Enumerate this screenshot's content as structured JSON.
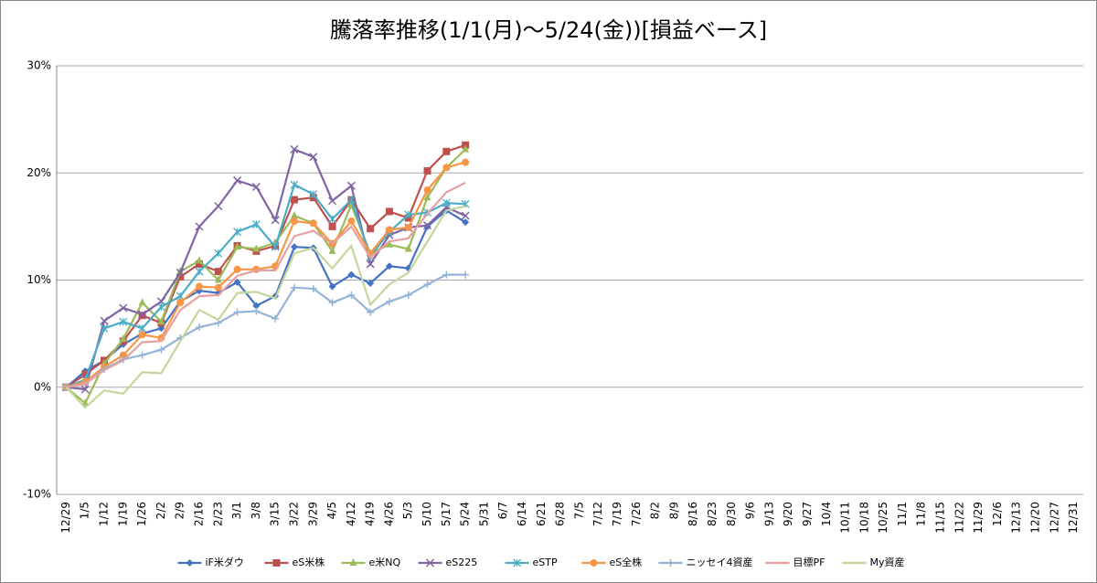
{
  "chart_data": {
    "type": "line",
    "title": "騰落率推移(1/1(月)～5/24(金))[損益ベース]",
    "categories": [
      "12/29",
      "1/5",
      "1/12",
      "1/19",
      "1/26",
      "2/2",
      "2/9",
      "2/16",
      "2/23",
      "3/1",
      "3/8",
      "3/15",
      "3/22",
      "3/29",
      "4/5",
      "4/12",
      "4/19",
      "4/26",
      "5/3",
      "5/10",
      "5/17",
      "5/24",
      "5/31",
      "6/7",
      "6/14",
      "6/21",
      "6/28",
      "7/5",
      "7/12",
      "7/19",
      "7/26",
      "8/2",
      "8/9",
      "8/16",
      "8/23",
      "8/30",
      "9/6",
      "9/13",
      "9/20",
      "9/27",
      "10/4",
      "10/11",
      "10/18",
      "10/25",
      "11/1",
      "11/8",
      "11/15",
      "11/22",
      "11/29",
      "12/6",
      "12/13",
      "12/20",
      "12/27",
      "12/31"
    ],
    "ylim": [
      -10,
      30
    ],
    "yticks": [
      {
        "value": -10,
        "label": "-10%"
      },
      {
        "value": 0,
        "label": "0%"
      },
      {
        "value": 10,
        "label": "10%"
      },
      {
        "value": 20,
        "label": "20%"
      },
      {
        "value": 30,
        "label": "30%"
      }
    ],
    "grid": true,
    "legend": "bottom",
    "series": [
      {
        "name": "iF米ダウ",
        "color": "#4472c4",
        "marker": "diamond",
        "values": [
          0,
          1.5,
          2.5,
          4,
          5,
          5.5,
          8,
          9,
          8.8,
          9.8,
          7.6,
          8.5,
          13.1,
          13,
          9.4,
          10.5,
          9.7,
          11.3,
          11.1,
          15,
          16.5,
          15.4,
          null,
          null,
          null,
          null,
          null,
          null,
          null,
          null,
          null,
          null,
          null,
          null,
          null,
          null,
          null,
          null,
          null,
          null,
          null,
          null,
          null,
          null,
          null,
          null,
          null,
          null,
          null,
          null,
          null,
          null,
          null,
          null
        ]
      },
      {
        "name": "eS米株",
        "color": "#c0504d",
        "marker": "square",
        "values": [
          0,
          1.2,
          2.5,
          4.3,
          6.7,
          6,
          10.3,
          11.5,
          10.8,
          13.2,
          12.7,
          13.2,
          17.5,
          17.7,
          15,
          17.5,
          14.8,
          16.4,
          15.8,
          20.2,
          22,
          22.6,
          null,
          null,
          null,
          null,
          null,
          null,
          null,
          null,
          null,
          null,
          null,
          null,
          null,
          null,
          null,
          null,
          null,
          null,
          null,
          null,
          null,
          null,
          null,
          null,
          null,
          null,
          null,
          null,
          null,
          null,
          null,
          null
        ]
      },
      {
        "name": "e米NQ",
        "color": "#9bbb59",
        "marker": "triangle",
        "values": [
          0,
          -1.5,
          2.2,
          4.5,
          7.9,
          6.1,
          10.8,
          11.8,
          10,
          13.1,
          12.9,
          13.5,
          16,
          15.3,
          12.7,
          17,
          12.5,
          13.3,
          12.9,
          17.7,
          20.5,
          22.2,
          null,
          null,
          null,
          null,
          null,
          null,
          null,
          null,
          null,
          null,
          null,
          null,
          null,
          null,
          null,
          null,
          null,
          null,
          null,
          null,
          null,
          null,
          null,
          null,
          null,
          null,
          null,
          null,
          null,
          null,
          null,
          null
        ]
      },
      {
        "name": "eS225",
        "color": "#8064a2",
        "marker": "x",
        "values": [
          0,
          -0.2,
          6.2,
          7.4,
          6.8,
          8,
          10.7,
          15,
          16.9,
          19.3,
          18.7,
          15.6,
          22.2,
          21.5,
          17.4,
          18.8,
          11.5,
          14.2,
          14.9,
          15.1,
          16.8,
          16,
          null,
          null,
          null,
          null,
          null,
          null,
          null,
          null,
          null,
          null,
          null,
          null,
          null,
          null,
          null,
          null,
          null,
          null,
          null,
          null,
          null,
          null,
          null,
          null,
          null,
          null,
          null,
          null,
          null,
          null,
          null,
          null
        ]
      },
      {
        "name": "eSTP",
        "color": "#4bacc6",
        "marker": "star",
        "values": [
          0,
          0.7,
          5.5,
          6.1,
          5.5,
          7.5,
          8.5,
          10.8,
          12.5,
          14.5,
          15.2,
          13.1,
          18.9,
          18,
          15.7,
          17.5,
          12.2,
          14.5,
          16.1,
          16.3,
          17.2,
          17.1,
          null,
          null,
          null,
          null,
          null,
          null,
          null,
          null,
          null,
          null,
          null,
          null,
          null,
          null,
          null,
          null,
          null,
          null,
          null,
          null,
          null,
          null,
          null,
          null,
          null,
          null,
          null,
          null,
          null,
          null,
          null,
          null
        ]
      },
      {
        "name": "eS全株",
        "color": "#f79646",
        "marker": "circle",
        "values": [
          0,
          0.5,
          1.9,
          3,
          4.9,
          4.6,
          7.9,
          9.4,
          9.3,
          11,
          11,
          11.3,
          15.5,
          15.3,
          13.4,
          15.5,
          12.5,
          14.7,
          14.9,
          18.4,
          20.5,
          21,
          null,
          null,
          null,
          null,
          null,
          null,
          null,
          null,
          null,
          null,
          null,
          null,
          null,
          null,
          null,
          null,
          null,
          null,
          null,
          null,
          null,
          null,
          null,
          null,
          null,
          null,
          null,
          null,
          null,
          null,
          null,
          null
        ]
      },
      {
        "name": "ニッセイ4資産",
        "color": "#95b3d7",
        "marker": "plus",
        "values": [
          0,
          0.3,
          1.7,
          2.6,
          3,
          3.5,
          4.6,
          5.6,
          6,
          7,
          7.1,
          6.4,
          9.3,
          9.2,
          7.9,
          8.6,
          7,
          8,
          8.6,
          9.6,
          10.5,
          10.5,
          null,
          null,
          null,
          null,
          null,
          null,
          null,
          null,
          null,
          null,
          null,
          null,
          null,
          null,
          null,
          null,
          null,
          null,
          null,
          null,
          null,
          null,
          null,
          null,
          null,
          null,
          null,
          null,
          null,
          null,
          null,
          null
        ]
      },
      {
        "name": "目標PF",
        "color": "#e6a0a0",
        "marker": "none",
        "values": [
          0,
          0.3,
          1.6,
          2.5,
          4.2,
          4.3,
          7.2,
          8.5,
          8.6,
          10.4,
          10.9,
          10.9,
          14.1,
          14.6,
          13.4,
          15,
          12.1,
          13.6,
          13.9,
          16.2,
          18.2,
          19.1,
          null,
          null,
          null,
          null,
          null,
          null,
          null,
          null,
          null,
          null,
          null,
          null,
          null,
          null,
          null,
          null,
          null,
          null,
          null,
          null,
          null,
          null,
          null,
          null,
          null,
          null,
          null,
          null,
          null,
          null,
          null,
          null
        ]
      },
      {
        "name": "My資産",
        "color": "#c3d69b",
        "marker": "none",
        "values": [
          0,
          -1.9,
          -0.3,
          -0.6,
          1.4,
          1.3,
          4.3,
          7.2,
          6.3,
          8.8,
          8.9,
          8.3,
          12.5,
          13,
          11.1,
          13.2,
          7.7,
          9.6,
          10.7,
          13.6,
          16.5,
          16.9,
          null,
          null,
          null,
          null,
          null,
          null,
          null,
          null,
          null,
          null,
          null,
          null,
          null,
          null,
          null,
          null,
          null,
          null,
          null,
          null,
          null,
          null,
          null,
          null,
          null,
          null,
          null,
          null,
          null,
          null,
          null,
          null
        ]
      }
    ]
  }
}
